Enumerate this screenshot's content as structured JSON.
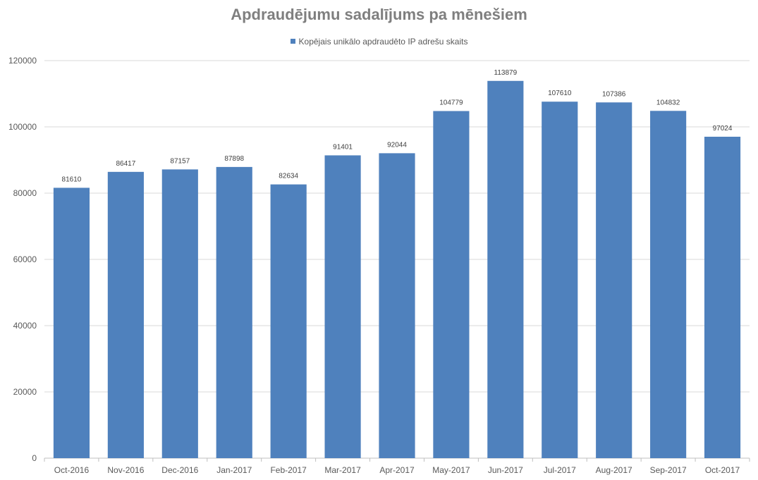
{
  "chart_data": {
    "type": "bar",
    "title": "Apdraudējumu sadalījums pa mēnešiem",
    "xlabel": "",
    "ylabel": "",
    "categories": [
      "Oct-2016",
      "Nov-2016",
      "Dec-2016",
      "Jan-2017",
      "Feb-2017",
      "Mar-2017",
      "Apr-2017",
      "May-2017",
      "Jun-2017",
      "Jul-2017",
      "Aug-2017",
      "Sep-2017",
      "Oct-2017"
    ],
    "series": [
      {
        "name": "Kopējais unikālo apdraudēto IP adrešu skaits",
        "values": [
          81610,
          86417,
          87157,
          87898,
          82634,
          91401,
          92044,
          104779,
          113879,
          107610,
          107386,
          104832,
          97024
        ],
        "color": "#4f81bd"
      }
    ],
    "ylim": [
      0,
      120000
    ],
    "yticks": [
      0,
      20000,
      40000,
      60000,
      80000,
      100000,
      120000
    ],
    "grid": true,
    "legend_position": "top",
    "data_labels": true
  }
}
